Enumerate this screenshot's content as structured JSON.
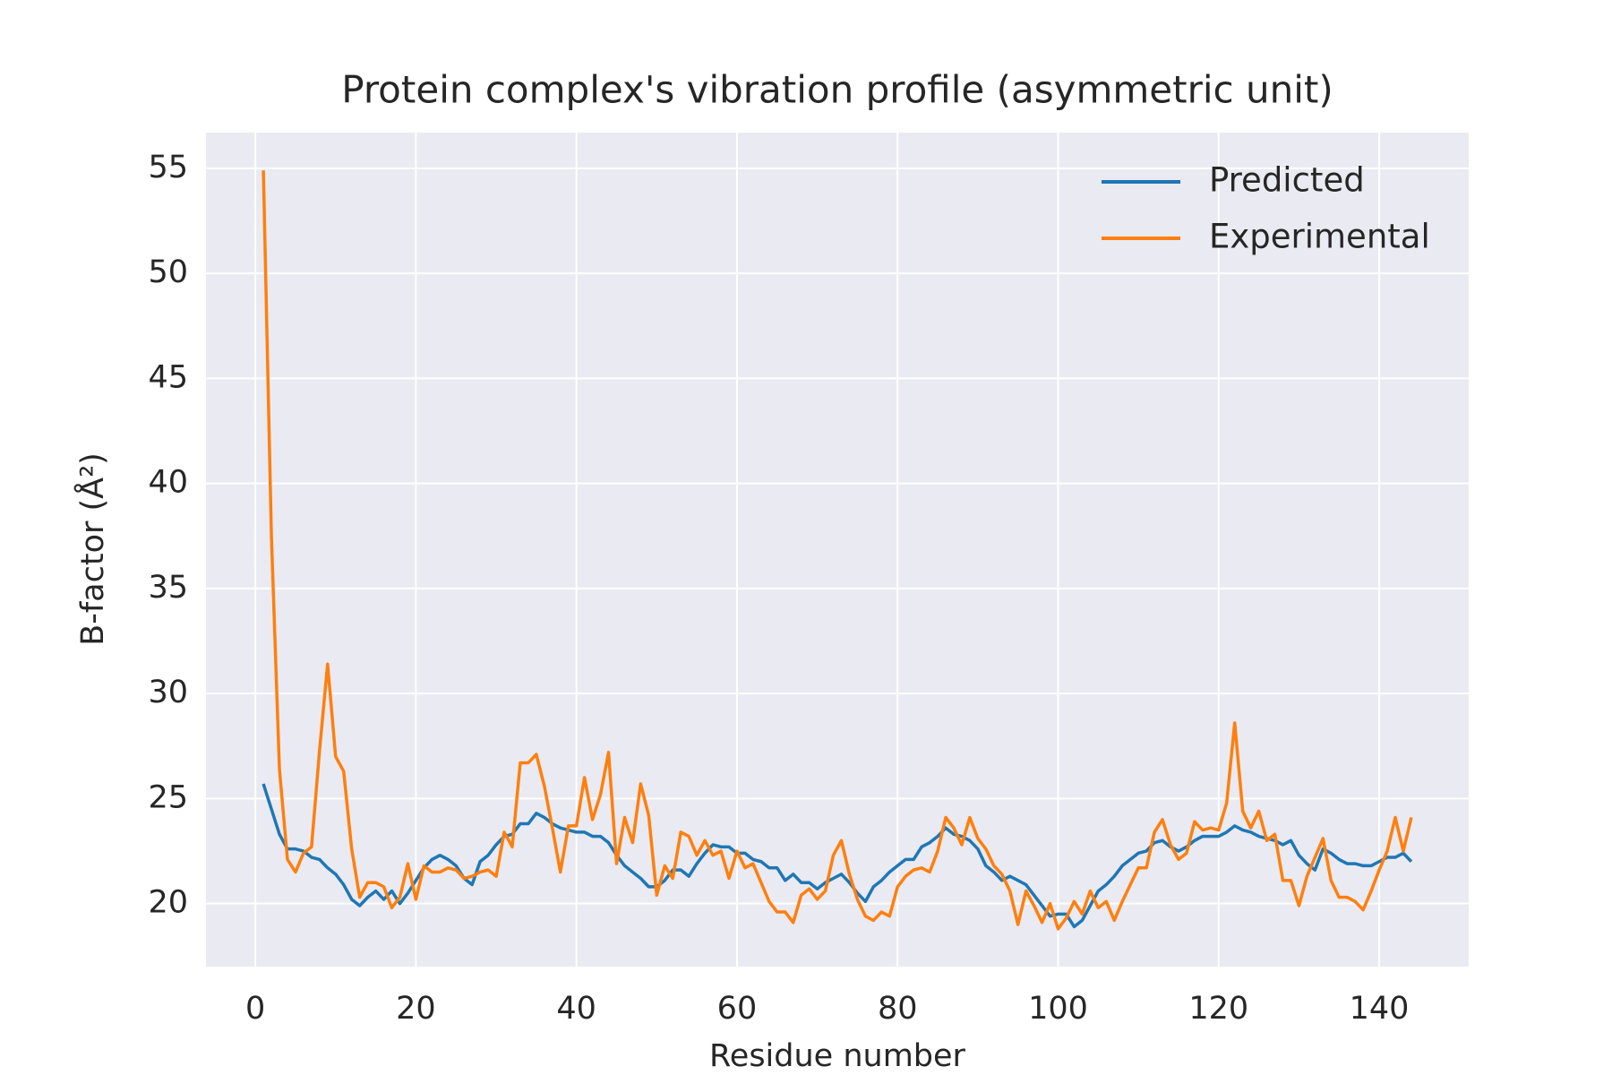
{
  "chart_data": {
    "type": "line",
    "title": "Protein complex's vibration profile (asymmetric unit)",
    "x_label": "Residue number",
    "y_label": "B-factor (Å²)",
    "x": [
      1,
      2,
      3,
      4,
      5,
      6,
      7,
      8,
      9,
      10,
      11,
      12,
      13,
      14,
      15,
      16,
      17,
      18,
      19,
      20,
      21,
      22,
      23,
      24,
      25,
      26,
      27,
      28,
      29,
      30,
      31,
      32,
      33,
      34,
      35,
      36,
      37,
      38,
      39,
      40,
      41,
      42,
      43,
      44,
      45,
      46,
      47,
      48,
      49,
      50,
      51,
      52,
      53,
      54,
      55,
      56,
      57,
      58,
      59,
      60,
      61,
      62,
      63,
      64,
      65,
      66,
      67,
      68,
      69,
      70,
      71,
      72,
      73,
      74,
      75,
      76,
      77,
      78,
      79,
      80,
      81,
      82,
      83,
      84,
      85,
      86,
      87,
      88,
      89,
      90,
      91,
      92,
      93,
      94,
      95,
      96,
      97,
      98,
      99,
      100,
      101,
      102,
      103,
      104,
      105,
      106,
      107,
      108,
      109,
      110,
      111,
      112,
      113,
      114,
      115,
      116,
      117,
      118,
      119,
      120,
      121,
      122,
      123,
      124,
      125,
      126,
      127,
      128,
      129,
      130,
      131,
      132,
      133,
      134,
      135,
      136,
      137,
      138,
      139,
      140,
      141,
      142,
      143,
      144
    ],
    "series": [
      {
        "name": "Predicted",
        "color": "#1f77b4",
        "values": [
          25.7,
          24.5,
          23.3,
          22.6,
          22.6,
          22.5,
          22.2,
          22.1,
          21.7,
          21.4,
          20.9,
          20.2,
          19.9,
          20.3,
          20.6,
          20.2,
          20.6,
          20.0,
          20.5,
          21.1,
          21.7,
          22.1,
          22.3,
          22.1,
          21.8,
          21.2,
          20.9,
          22.0,
          22.3,
          22.8,
          23.2,
          23.3,
          23.8,
          23.8,
          24.3,
          24.1,
          23.8,
          23.6,
          23.5,
          23.4,
          23.4,
          23.2,
          23.2,
          22.9,
          22.3,
          21.8,
          21.5,
          21.2,
          20.8,
          20.8,
          21.1,
          21.6,
          21.6,
          21.3,
          21.9,
          22.4,
          22.8,
          22.7,
          22.7,
          22.4,
          22.4,
          22.1,
          22.0,
          21.7,
          21.7,
          21.1,
          21.4,
          21.0,
          21.0,
          20.7,
          21.0,
          21.2,
          21.4,
          21.0,
          20.5,
          20.1,
          20.8,
          21.1,
          21.5,
          21.8,
          22.1,
          22.1,
          22.7,
          22.9,
          23.2,
          23.6,
          23.3,
          23.2,
          23.0,
          22.6,
          21.8,
          21.5,
          21.1,
          21.3,
          21.1,
          20.9,
          20.4,
          19.9,
          19.4,
          19.5,
          19.5,
          18.9,
          19.2,
          19.9,
          20.6,
          20.9,
          21.3,
          21.8,
          22.1,
          22.4,
          22.5,
          22.9,
          23.0,
          22.7,
          22.5,
          22.7,
          23.0,
          23.2,
          23.2,
          23.2,
          23.4,
          23.7,
          23.5,
          23.4,
          23.2,
          23.1,
          23.0,
          22.8,
          23.0,
          22.3,
          21.9,
          21.6,
          22.6,
          22.4,
          22.1,
          21.9,
          21.9,
          21.8,
          21.8,
          22.0,
          22.2,
          22.2,
          22.4,
          22.0
        ]
      },
      {
        "name": "Experimental",
        "color": "#ff7f0e",
        "values": [
          54.9,
          37.5,
          26.4,
          22.1,
          21.5,
          22.4,
          22.7,
          27.3,
          31.4,
          27.0,
          26.3,
          22.6,
          20.3,
          21.0,
          21.0,
          20.8,
          19.8,
          20.3,
          21.9,
          20.2,
          21.8,
          21.5,
          21.5,
          21.7,
          21.6,
          21.2,
          21.3,
          21.5,
          21.6,
          21.3,
          23.4,
          22.7,
          26.7,
          26.7,
          27.1,
          25.6,
          23.6,
          21.5,
          23.7,
          23.7,
          26.0,
          24.0,
          25.2,
          27.2,
          21.9,
          24.1,
          22.9,
          25.7,
          24.2,
          20.4,
          21.8,
          21.2,
          23.4,
          23.2,
          22.3,
          23.0,
          22.3,
          22.5,
          21.2,
          22.5,
          21.7,
          21.9,
          21.0,
          20.1,
          19.6,
          19.6,
          19.1,
          20.4,
          20.7,
          20.2,
          20.6,
          22.3,
          23.0,
          21.4,
          20.2,
          19.4,
          19.2,
          19.6,
          19.4,
          20.8,
          21.3,
          21.6,
          21.7,
          21.5,
          22.5,
          24.1,
          23.6,
          22.8,
          24.1,
          23.1,
          22.6,
          21.8,
          21.4,
          20.6,
          19.0,
          20.6,
          19.9,
          19.1,
          20.0,
          18.8,
          19.3,
          20.1,
          19.5,
          20.6,
          19.8,
          20.1,
          19.2,
          20.1,
          20.9,
          21.7,
          21.7,
          23.4,
          24.0,
          22.8,
          22.1,
          22.4,
          23.9,
          23.5,
          23.6,
          23.5,
          24.8,
          28.6,
          24.4,
          23.6,
          24.4,
          23.0,
          23.3,
          21.1,
          21.1,
          19.9,
          21.3,
          22.2,
          23.1,
          21.1,
          20.3,
          20.3,
          20.1,
          19.7,
          20.6,
          21.6,
          22.5,
          24.1,
          22.5,
          24.1
        ]
      }
    ],
    "xlim": [
      -6.15,
      151.15
    ],
    "ylim": [
      17.0,
      56.7
    ],
    "xticks": [
      0,
      20,
      40,
      60,
      80,
      100,
      120,
      140
    ],
    "yticks": [
      20,
      25,
      30,
      35,
      40,
      45,
      50,
      55
    ],
    "grid": true,
    "legend": "upper right"
  }
}
